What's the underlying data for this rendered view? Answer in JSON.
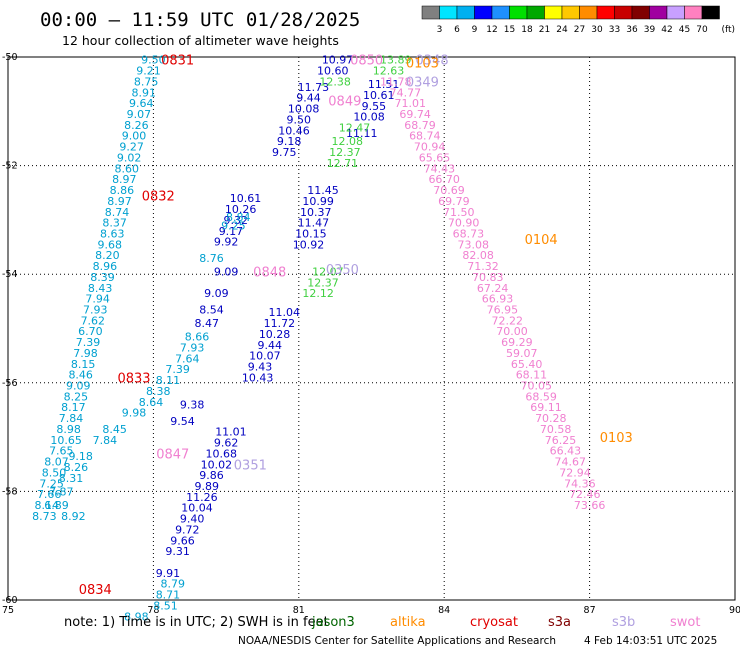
{
  "header": {
    "title": "00:00 – 11:59 UTC 01/28/2025",
    "subtitle": "12 hour collection of altimeter wave heights"
  },
  "colorbar": {
    "labels": [
      "3",
      "6",
      "9",
      "12",
      "15",
      "18",
      "21",
      "24",
      "27",
      "30",
      "33",
      "36",
      "39",
      "42",
      "45",
      "70"
    ],
    "unit": "(ft)",
    "colors": [
      "#808080",
      "#00e5ff",
      "#00b0f0",
      "#0000ff",
      "#1e90ff",
      "#00e000",
      "#00a800",
      "#ffff00",
      "#ffc800",
      "#ff8c00",
      "#ff0000",
      "#c80000",
      "#800000",
      "#a000a0",
      "#c8a0ff",
      "#ff80c0",
      "#000000"
    ]
  },
  "footer": {
    "note": "note: 1) Time is in UTC; 2) SWH is in feet",
    "legend": [
      {
        "label": "jason3",
        "color": "#006400"
      },
      {
        "label": "altika",
        "color": "#ff8c00"
      },
      {
        "label": "cryosat",
        "color": "#e00000"
      },
      {
        "label": "s3a",
        "color": "#800000"
      },
      {
        "label": "s3b",
        "color": "#b0a0e0"
      },
      {
        "label": "swot",
        "color": "#f080d0"
      }
    ],
    "credit": "NOAA/NESDIS Center for Satellite Applications and Research",
    "timestamp": "4 Feb 14:03:51 UTC 2025"
  },
  "chart_data": {
    "type": "scatter",
    "xlim": [
      75,
      90
    ],
    "ylim": [
      -60,
      -50
    ],
    "xticks": [
      75,
      78,
      81,
      84,
      87,
      90
    ],
    "yticks": [
      -50,
      -52,
      -54,
      -56,
      -58,
      -60
    ],
    "xtick_labels": [
      "75",
      "78",
      "81",
      "84",
      "87",
      "90"
    ],
    "ytick_labels": [
      "-50",
      "-52",
      "-54",
      "-56",
      "-58",
      "-60"
    ],
    "grid": true,
    "orbit_labels": [
      {
        "text": "0831",
        "x": 78.5,
        "y": -50.05,
        "color": "#e00000"
      },
      {
        "text": "0832",
        "x": 78.1,
        "y": -52.55,
        "color": "#e00000"
      },
      {
        "text": "0833",
        "x": 77.6,
        "y": -55.9,
        "color": "#e00000"
      },
      {
        "text": "0834",
        "x": 76.8,
        "y": -59.8,
        "color": "#e00000"
      },
      {
        "text": "0847",
        "x": 78.4,
        "y": -57.3,
        "color": "#f080d0"
      },
      {
        "text": "0848",
        "x": 80.4,
        "y": -53.95,
        "color": "#f080d0"
      },
      {
        "text": "0849",
        "x": 81.95,
        "y": -50.8,
        "color": "#f080d0"
      },
      {
        "text": "0850",
        "x": 82.4,
        "y": -50.05,
        "color": "#f080d0"
      },
      {
        "text": "0351",
        "x": 80.0,
        "y": -57.5,
        "color": "#b0a0e0"
      },
      {
        "text": "0350",
        "x": 81.9,
        "y": -53.9,
        "color": "#b0a0e0"
      },
      {
        "text": "0349",
        "x": 83.55,
        "y": -50.45,
        "color": "#b0a0e0"
      },
      {
        "text": "0348",
        "x": 83.75,
        "y": -50.05,
        "color": "#b0a0e0"
      },
      {
        "text": "0103",
        "x": 83.55,
        "y": -50.1,
        "color": "#ff8c00"
      },
      {
        "text": "0104",
        "x": 86.0,
        "y": -53.35,
        "color": "#ff8c00"
      },
      {
        "text": "0103",
        "x": 87.55,
        "y": -57.0,
        "color": "#ff8c00"
      }
    ],
    "series": [
      {
        "name": "jason3",
        "color": "#00a0d0",
        "points": [
          [
            78.0,
            -50.05,
            "9.50"
          ],
          [
            77.9,
            -50.25,
            "9.21"
          ],
          [
            77.85,
            -50.45,
            "8.75"
          ],
          [
            77.8,
            -50.65,
            "8.91"
          ],
          [
            77.75,
            -50.85,
            "9.64"
          ],
          [
            77.7,
            -51.05,
            "9.07"
          ],
          [
            77.65,
            -51.25,
            "8.26"
          ],
          [
            77.6,
            -51.45,
            "9.00"
          ],
          [
            77.55,
            -51.65,
            "9.27"
          ],
          [
            77.5,
            -51.85,
            "9.02"
          ],
          [
            77.45,
            -52.05,
            "8.60"
          ],
          [
            77.4,
            -52.25,
            "8.97"
          ],
          [
            77.35,
            -52.45,
            "8.86"
          ],
          [
            77.3,
            -52.65,
            "8.97"
          ],
          [
            77.25,
            -52.85,
            "8.74"
          ],
          [
            77.2,
            -53.05,
            "8.37"
          ],
          [
            77.15,
            -53.25,
            "8.63"
          ],
          [
            77.1,
            -53.45,
            "9.68"
          ],
          [
            77.05,
            -53.65,
            "8.20"
          ],
          [
            77.0,
            -53.85,
            "8.96"
          ],
          [
            76.95,
            -54.05,
            "8.39"
          ],
          [
            76.9,
            -54.25,
            "8.43"
          ],
          [
            76.85,
            -54.45,
            "7.94"
          ],
          [
            76.8,
            -54.65,
            "7.93"
          ],
          [
            76.75,
            -54.85,
            "7.62"
          ],
          [
            76.7,
            -55.05,
            "6.70"
          ],
          [
            76.65,
            -55.25,
            "7.39"
          ],
          [
            76.6,
            -55.45,
            "7.98"
          ],
          [
            76.55,
            -55.65,
            "8.15"
          ],
          [
            76.5,
            -55.85,
            "8.46"
          ],
          [
            76.45,
            -56.05,
            "9.09"
          ],
          [
            76.4,
            -56.25,
            "8.25"
          ],
          [
            76.35,
            -56.45,
            "8.17"
          ],
          [
            76.3,
            -56.65,
            "7.84"
          ],
          [
            76.25,
            -56.85,
            "8.98"
          ],
          [
            76.2,
            -57.05,
            "10.65"
          ],
          [
            76.1,
            -57.25,
            "7.65"
          ],
          [
            76.0,
            -57.45,
            "8.07"
          ],
          [
            75.95,
            -57.65,
            "8.50"
          ],
          [
            75.9,
            -57.85,
            "7.25"
          ],
          [
            75.85,
            -58.05,
            "7.66"
          ],
          [
            75.8,
            -58.25,
            "8.14"
          ],
          [
            75.75,
            -58.45,
            "8.73"
          ],
          [
            76.0,
            -58.25,
            "6.89"
          ],
          [
            76.35,
            -58.45,
            "8.92"
          ]
        ]
      },
      {
        "name": "",
        "color": "#0000c0",
        "points": [
          [
            79.9,
            -52.6,
            "10.61"
          ],
          [
            79.8,
            -52.8,
            "10.26"
          ],
          [
            79.7,
            -53.0,
            "9.32"
          ],
          [
            79.6,
            -53.2,
            "9.17"
          ],
          [
            79.5,
            -53.4,
            "9.92"
          ],
          [
            79.5,
            -53.95,
            "9.09"
          ],
          [
            79.3,
            -54.35,
            "9.09"
          ],
          [
            79.2,
            -54.65,
            "8.54"
          ],
          [
            79.1,
            -54.9,
            "8.47"
          ],
          [
            78.8,
            -56.4,
            "9.38"
          ],
          [
            78.6,
            -56.7,
            "9.54"
          ],
          [
            79.6,
            -56.9,
            "11.01"
          ],
          [
            79.5,
            -57.1,
            "9.62"
          ],
          [
            79.4,
            -57.3,
            "10.68"
          ],
          [
            79.3,
            -57.5,
            "10.02"
          ],
          [
            79.2,
            -57.7,
            "9.86"
          ],
          [
            79.1,
            -57.9,
            "9.89"
          ],
          [
            79.0,
            -58.1,
            "11.26"
          ],
          [
            78.9,
            -58.3,
            "10.04"
          ],
          [
            78.8,
            -58.5,
            "9.40"
          ],
          [
            78.7,
            -58.7,
            "9.72"
          ],
          [
            78.6,
            -58.9,
            "9.66"
          ],
          [
            78.5,
            -59.1,
            "9.31"
          ],
          [
            78.3,
            -59.5,
            "9.91"
          ],
          [
            81.3,
            -50.55,
            "11.73"
          ],
          [
            81.2,
            -50.75,
            "9.44"
          ],
          [
            81.1,
            -50.95,
            "10.08"
          ],
          [
            81.0,
            -51.15,
            "9.50"
          ],
          [
            80.9,
            -51.35,
            "10.46"
          ],
          [
            80.8,
            -51.55,
            "9.18"
          ],
          [
            80.7,
            -51.75,
            "9.75"
          ],
          [
            81.5,
            -52.45,
            "11.45"
          ],
          [
            81.4,
            -52.65,
            "10.99"
          ],
          [
            81.35,
            -52.85,
            "10.37"
          ],
          [
            81.3,
            -53.05,
            "11.47"
          ],
          [
            81.25,
            -53.25,
            "10.15"
          ],
          [
            81.2,
            -53.45,
            "10.92"
          ],
          [
            80.7,
            -54.7,
            "11.04"
          ],
          [
            80.6,
            -54.9,
            "11.72"
          ],
          [
            80.5,
            -55.1,
            "10.28"
          ],
          [
            80.4,
            -55.3,
            "9.44"
          ],
          [
            80.3,
            -55.5,
            "10.07"
          ],
          [
            80.2,
            -55.7,
            "9.43"
          ],
          [
            80.15,
            -55.9,
            "10.43"
          ],
          [
            81.8,
            -50.05,
            "10.97"
          ],
          [
            81.7,
            -50.25,
            "10.60"
          ],
          [
            82.75,
            -50.5,
            "11.51"
          ],
          [
            82.65,
            -50.7,
            "10.61"
          ],
          [
            82.55,
            -50.9,
            "9.55"
          ],
          [
            82.45,
            -51.1,
            "10.08"
          ],
          [
            82.3,
            -51.4,
            "11.11"
          ]
        ]
      },
      {
        "name": "",
        "color": "#00a0d0",
        "points": [
          [
            79.2,
            -53.7,
            "8.76"
          ],
          [
            78.9,
            -55.15,
            "8.66"
          ],
          [
            78.8,
            -55.35,
            "7.93"
          ],
          [
            78.7,
            -55.55,
            "7.64"
          ],
          [
            78.5,
            -55.75,
            "7.39"
          ],
          [
            78.3,
            -55.95,
            "8.11"
          ],
          [
            78.1,
            -56.15,
            "8.38"
          ],
          [
            77.95,
            -56.35,
            "8.64"
          ],
          [
            77.6,
            -56.55,
            "9.98"
          ],
          [
            77.2,
            -56.85,
            "8.45"
          ],
          [
            77.0,
            -57.05,
            "7.84"
          ],
          [
            76.5,
            -57.35,
            "9.18"
          ],
          [
            76.4,
            -57.55,
            "8.26"
          ],
          [
            76.3,
            -57.75,
            "8.31"
          ],
          [
            76.1,
            -58.0,
            "7.87"
          ],
          [
            78.4,
            -59.7,
            "8.79"
          ],
          [
            78.3,
            -59.9,
            "8.71"
          ],
          [
            78.25,
            -60.1,
            "8.51"
          ],
          [
            77.65,
            -60.3,
            "8.98"
          ],
          [
            79.75,
            -52.95,
            "8.84"
          ],
          [
            79.65,
            -53.1,
            "9.25"
          ]
        ]
      },
      {
        "name": "",
        "color": "#40d040",
        "points": [
          [
            81.75,
            -50.45,
            "12.38"
          ],
          [
            81.6,
            -53.95,
            "12.07"
          ],
          [
            81.5,
            -54.15,
            "12.37"
          ],
          [
            81.4,
            -54.35,
            "12.12"
          ],
          [
            82.15,
            -51.3,
            "12.47"
          ],
          [
            82.0,
            -51.55,
            "12.08"
          ],
          [
            81.95,
            -51.75,
            "12.37"
          ],
          [
            81.9,
            -51.95,
            "12.71"
          ],
          [
            83.0,
            -50.05,
            "13.89"
          ],
          [
            82.85,
            -50.25,
            "12.63"
          ]
        ]
      },
      {
        "name": "",
        "color": "#f080d0",
        "points": [
          [
            83.0,
            -50.45,
            "11.78"
          ],
          [
            83.2,
            -50.65,
            "74.77"
          ],
          [
            83.3,
            -50.85,
            "71.01"
          ],
          [
            83.4,
            -51.05,
            "69.74"
          ],
          [
            83.5,
            -51.25,
            "68.79"
          ],
          [
            83.6,
            -51.45,
            "68.74"
          ],
          [
            83.7,
            -51.65,
            "70.94"
          ],
          [
            83.8,
            -51.85,
            "65.65"
          ],
          [
            83.9,
            -52.05,
            "74.43"
          ],
          [
            84.0,
            -52.25,
            "66.70"
          ],
          [
            84.1,
            -52.45,
            "70.69"
          ],
          [
            84.2,
            -52.65,
            "69.79"
          ],
          [
            84.3,
            -52.85,
            "71.50"
          ],
          [
            84.4,
            -53.05,
            "70.90"
          ],
          [
            84.5,
            -53.25,
            "68.73"
          ],
          [
            84.6,
            -53.45,
            "73.08"
          ],
          [
            84.7,
            -53.65,
            "82.08"
          ],
          [
            84.8,
            -53.85,
            "71.32"
          ],
          [
            84.9,
            -54.05,
            "70.83"
          ],
          [
            85.0,
            -54.25,
            "67.24"
          ],
          [
            85.1,
            -54.45,
            "66.93"
          ],
          [
            85.2,
            -54.65,
            "76.95"
          ],
          [
            85.3,
            -54.85,
            "72.22"
          ],
          [
            85.4,
            -55.05,
            "70.00"
          ],
          [
            85.5,
            -55.25,
            "69.29"
          ],
          [
            85.6,
            -55.45,
            "59.07"
          ],
          [
            85.7,
            -55.65,
            "65.40"
          ],
          [
            85.8,
            -55.85,
            "68.11"
          ],
          [
            85.9,
            -56.05,
            "70.05"
          ],
          [
            86.0,
            -56.25,
            "68.59"
          ],
          [
            86.1,
            -56.45,
            "69.11"
          ],
          [
            86.2,
            -56.65,
            "70.28"
          ],
          [
            86.3,
            -56.85,
            "70.58"
          ],
          [
            86.4,
            -57.05,
            "76.25"
          ],
          [
            86.5,
            -57.25,
            "66.43"
          ],
          [
            86.6,
            -57.45,
            "74.67"
          ],
          [
            86.7,
            -57.65,
            "72.94"
          ],
          [
            86.8,
            -57.85,
            "74.36"
          ],
          [
            86.9,
            -58.05,
            "72.46"
          ],
          [
            87.0,
            -58.25,
            "73.66"
          ]
        ]
      }
    ]
  }
}
